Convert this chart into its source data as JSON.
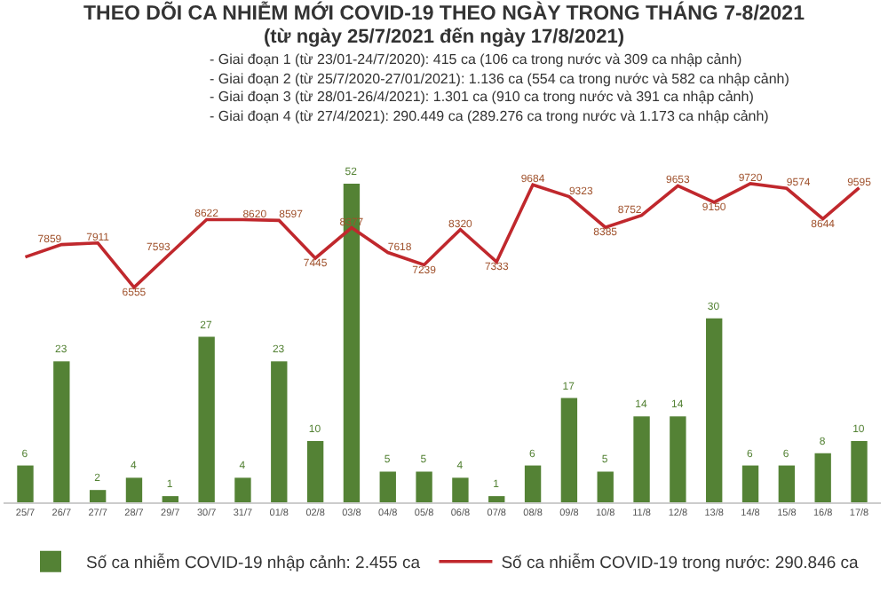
{
  "chart_data": {
    "type": "bar",
    "title": "THEO DÕI CA NHIỄM MỚI COVID-19 THEO NGÀY TRONG THÁNG 7-8/2021",
    "subtitle": "(từ ngày 25/7/2021 đến ngày 17/8/2021)",
    "annotations": [
      "- Giai đoạn 1 (từ 23/01-24/7/2020): 415 ca (106 ca trong nước và 309 ca nhập cảnh)",
      "- Giai đoạn 2 (từ 25/7/2020-27/01/2021): 1.136 ca (554 ca trong nước và 582 ca nhập cảnh)",
      "- Giai đoạn 3 (từ 28/01-26/4/2021): 1.301 ca (910 ca trong nước và 391 ca nhập cảnh)",
      "- Giai đoạn 4 (từ 27/4/2021): 290.449 ca (289.276 ca trong nước và 1.173 ca nhập cảnh)"
    ],
    "categories": [
      "25/7",
      "26/7",
      "27/7",
      "28/7",
      "29/7",
      "30/7",
      "31/7",
      "01/8",
      "02/8",
      "03/8",
      "04/8",
      "05/8",
      "06/8",
      "07/8",
      "08/8",
      "09/8",
      "10/8",
      "11/8",
      "12/8",
      "13/8",
      "14/8",
      "15/8",
      "16/8",
      "17/8"
    ],
    "series": [
      {
        "name": "Số ca nhiễm COVID-19 nhập cảnh: 2.455 ca",
        "color": "#548235",
        "values": [
          6,
          23,
          2,
          4,
          1,
          27,
          4,
          23,
          10,
          52,
          5,
          5,
          4,
          1,
          6,
          17,
          5,
          14,
          14,
          30,
          6,
          6,
          8,
          10
        ],
        "value_labels": [
          "6",
          "23",
          "2",
          "4",
          "1",
          "27",
          "4",
          "23",
          "10",
          "52",
          "5",
          "5",
          "4",
          "1",
          "6",
          "17",
          "5",
          "14",
          "14",
          "30",
          "6",
          "6",
          "8",
          "10"
        ]
      },
      {
        "name": "Số ca nhiễm COVID-19 trong nước: 290.846 ca",
        "type": "line",
        "axis": "y2",
        "color": "#c0282d",
        "values": [
          7480,
          7859,
          7911,
          6555,
          7593,
          8622,
          8620,
          8597,
          7445,
          8377,
          7618,
          7239,
          8320,
          7333,
          9684,
          9323,
          8385,
          8752,
          9653,
          9150,
          9720,
          9574,
          8644,
          9595
        ],
        "value_labels": [
          null,
          "7859",
          "7911",
          "6555",
          "7593",
          "8622",
          "8620",
          "8597",
          "7445",
          "8377",
          "7618",
          "7239",
          "8320",
          "7333",
          "9684",
          "9323",
          "8385",
          "8752",
          "9653",
          "9150",
          "9720",
          "9574",
          "8644",
          "9595"
        ]
      }
    ],
    "legend": "bottom"
  }
}
